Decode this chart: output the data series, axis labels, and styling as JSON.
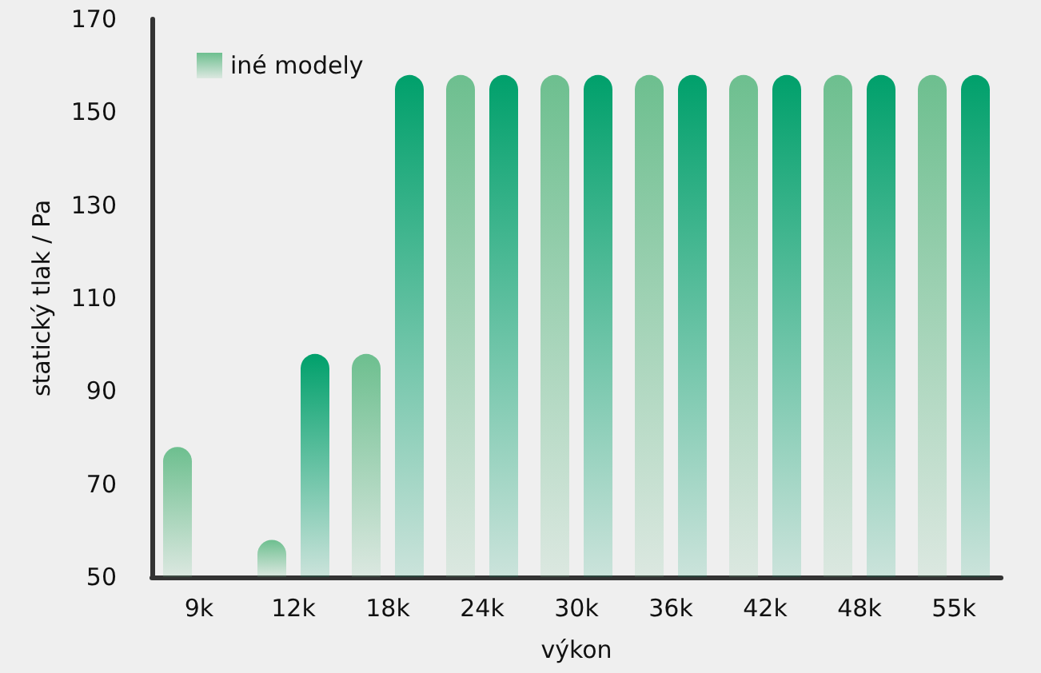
{
  "chart_data": {
    "type": "bar",
    "xlabel": "výkon",
    "ylabel": "statický tlak / Pa",
    "categories": [
      "9k",
      "12k",
      "18k",
      "24k",
      "30k",
      "36k",
      "42k",
      "48k",
      "55k"
    ],
    "series": [
      {
        "name": "iné modely",
        "color": "#6dbf8f",
        "values": [
          78,
          58,
          98,
          158,
          158,
          158,
          158,
          158,
          158
        ]
      },
      {
        "color": "#00a06b",
        "values": [
          null,
          98,
          158,
          158,
          158,
          158,
          158,
          158,
          158
        ]
      }
    ],
    "ylim": [
      50,
      170
    ],
    "yticks": [
      50,
      70,
      90,
      110,
      130,
      150,
      170
    ],
    "legend": "top left",
    "grid": false
  }
}
